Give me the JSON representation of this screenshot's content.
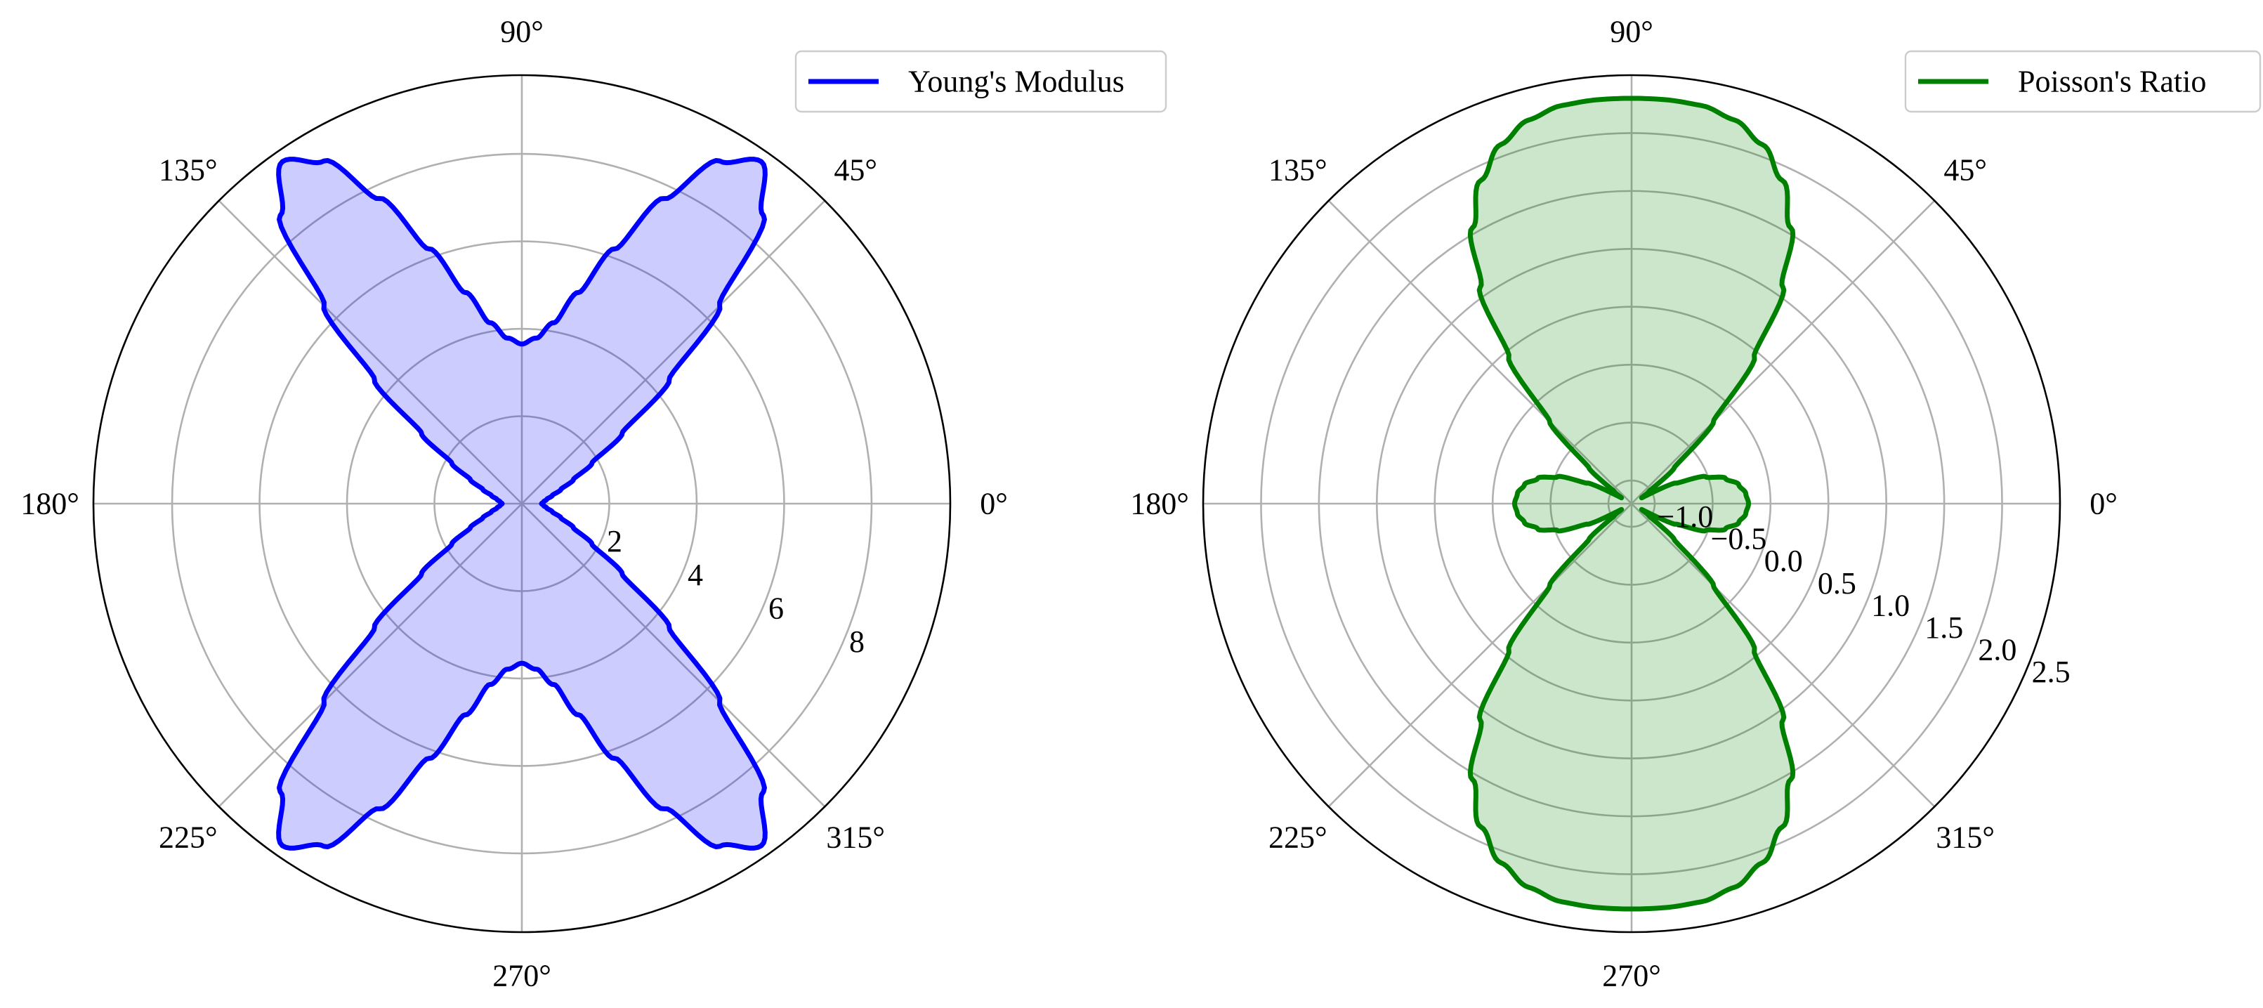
{
  "chart_data": [
    {
      "type": "polar-area",
      "title": "",
      "theta_ticks_deg": [
        0,
        45,
        90,
        135,
        180,
        225,
        270,
        315
      ],
      "theta_tick_labels": [
        "0°",
        "45°",
        "90°",
        "135°",
        "180°",
        "225°",
        "270°",
        "315°"
      ],
      "r_ticks": [
        2,
        4,
        6,
        8
      ],
      "r_tick_labels": [
        "2",
        "4",
        "6",
        "8"
      ],
      "rlim": [
        0,
        9.8
      ],
      "r_label_angle_deg": -22.5,
      "grid": true,
      "legend": {
        "placement": "upper-right",
        "entries": [
          "Young's Modulus"
        ]
      },
      "series": [
        {
          "name": "Young's Modulus",
          "color": "#0000ff",
          "fill_color": "#0000ff",
          "fill_alpha": 0.2,
          "theta_deg": [
            0,
            5,
            10,
            15,
            20,
            25,
            30,
            35,
            40,
            45,
            50,
            55,
            60,
            65,
            70,
            75,
            80,
            85,
            90
          ],
          "r": [
            0.45,
            0.5,
            0.58,
            0.72,
            0.95,
            1.3,
            1.85,
            2.8,
            4.4,
            6.4,
            8.6,
            9.55,
            9.05,
            7.7,
            6.2,
            5.0,
            4.2,
            3.8,
            3.65
          ],
          "symmetry": "mirrored about 0° and 90° axes"
        }
      ]
    },
    {
      "type": "polar-area",
      "title": "",
      "theta_ticks_deg": [
        0,
        45,
        90,
        135,
        180,
        225,
        270,
        315
      ],
      "theta_tick_labels": [
        "0°",
        "45°",
        "90°",
        "135°",
        "180°",
        "225°",
        "270°",
        "315°"
      ],
      "r_ticks": [
        -1.0,
        -0.5,
        0.0,
        0.5,
        1.0,
        1.5,
        2.0,
        2.5
      ],
      "r_tick_labels": [
        "−1.0",
        "−0.5",
        "0.0",
        "0.5",
        "1.0",
        "1.5",
        "2.0",
        "2.5"
      ],
      "rlim": [
        -1.2,
        2.5
      ],
      "r_label_angle_deg": -22.5,
      "grid": true,
      "legend": {
        "placement": "upper-right",
        "entries": [
          "Poisson's Ratio"
        ]
      },
      "series": [
        {
          "name": "Poisson's Ratio",
          "color": "#008000",
          "fill_color": "#008000",
          "fill_alpha": 0.2,
          "theta_deg": [
            0,
            5,
            10,
            15,
            20,
            25,
            30,
            35,
            40,
            45,
            50,
            55,
            60,
            65,
            70,
            75,
            80,
            85,
            90
          ],
          "r": [
            -0.19,
            -0.21,
            -0.26,
            -0.36,
            -0.52,
            -0.78,
            -1.1,
            -1.02,
            -0.72,
            -0.2,
            0.45,
            1.08,
            1.55,
            1.88,
            2.1,
            2.23,
            2.29,
            2.3,
            2.3
          ],
          "symmetry": "mirrored about 0° and 90° axes"
        }
      ]
    }
  ]
}
